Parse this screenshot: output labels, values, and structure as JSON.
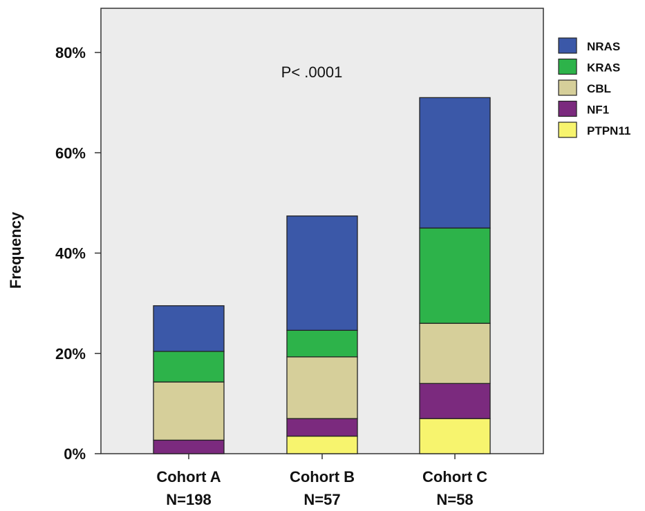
{
  "chart_data": {
    "type": "bar",
    "stacked": true,
    "categories": [
      "Cohort A",
      "Cohort B",
      "Cohort C"
    ],
    "category_sublabels": [
      "N=198",
      "N=57",
      "N=58"
    ],
    "series": [
      {
        "name": "PTPN11",
        "color": "#f7f46e",
        "values": [
          0,
          3.5,
          7.0
        ]
      },
      {
        "name": "NF1",
        "color": "#7b2a7e",
        "values": [
          2.7,
          3.5,
          7.0
        ]
      },
      {
        "name": "CBL",
        "color": "#d6cf9a",
        "values": [
          11.6,
          12.3,
          12.0
        ]
      },
      {
        "name": "KRAS",
        "color": "#2db34a",
        "values": [
          6.1,
          5.3,
          19.0
        ]
      },
      {
        "name": "NRAS",
        "color": "#3b58a8",
        "values": [
          9.1,
          22.8,
          26.0
        ]
      }
    ],
    "legend_order": [
      "NRAS",
      "KRAS",
      "CBL",
      "NF1",
      "PTPN11"
    ],
    "legend_position": "right",
    "ylabel": "Frequency",
    "xlabel": "",
    "ylim": [
      0,
      80
    ],
    "yticks": [
      "0%",
      "20%",
      "40%",
      "60%",
      "80%"
    ],
    "ytick_values": [
      0,
      20,
      40,
      60,
      80
    ],
    "annotation": "P< .0001",
    "plot_background": "#ececec",
    "grid": false
  }
}
